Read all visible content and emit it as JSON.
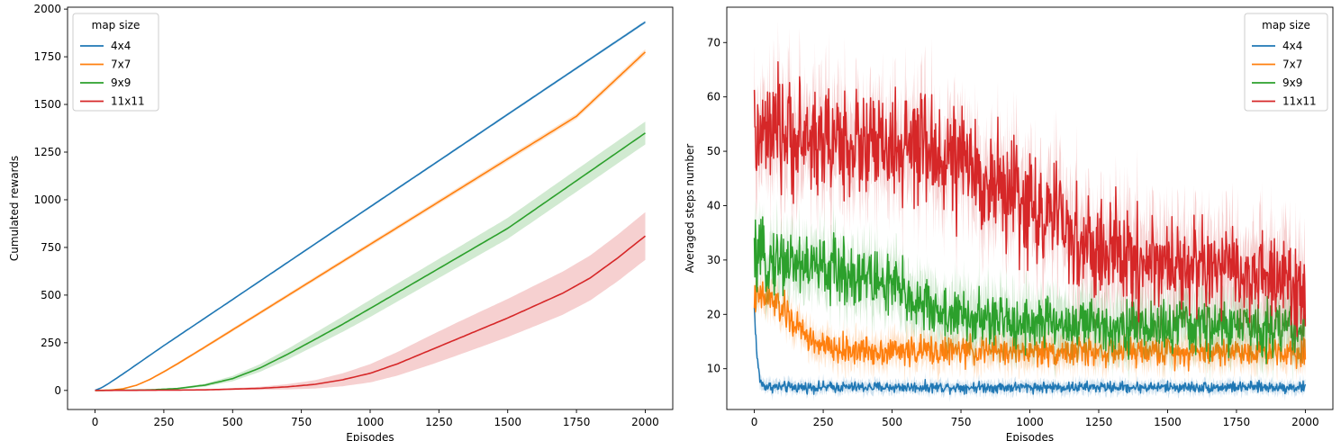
{
  "chart_data": [
    {
      "type": "line",
      "title": "",
      "xlabel": "Episodes",
      "ylabel": "Cumulated rewards",
      "xlim": [
        -100,
        2100
      ],
      "ylim": [
        -100,
        2010
      ],
      "xticks": [
        0,
        250,
        500,
        750,
        1000,
        1250,
        1500,
        1750,
        2000
      ],
      "yticks": [
        0,
        250,
        500,
        750,
        1000,
        1250,
        1500,
        1750,
        2000
      ],
      "grid": false,
      "legend": {
        "title": "map size",
        "placement": "upper-left"
      },
      "series": [
        {
          "name": "4x4",
          "color": "#1f77b4",
          "x": [
            0,
            25,
            50,
            100,
            250,
            500,
            750,
            1000,
            1250,
            1500,
            1750,
            2000
          ],
          "y": [
            0,
            15,
            37,
            85,
            235,
            477,
            720,
            963,
            1205,
            1448,
            1690,
            1932
          ],
          "band": [
            0,
            0,
            1,
            2,
            3,
            4,
            5,
            6,
            6,
            7,
            7,
            8
          ]
        },
        {
          "name": "7x7",
          "color": "#ff7f0e",
          "x": [
            0,
            50,
            100,
            150,
            200,
            250,
            300,
            400,
            500,
            750,
            1000,
            1250,
            1500,
            1750,
            2000
          ],
          "y": [
            0,
            1,
            8,
            27,
            58,
            98,
            140,
            228,
            318,
            542,
            766,
            990,
            1214,
            1438,
            1775
          ],
          "band": [
            0,
            0,
            1,
            3,
            5,
            6,
            7,
            8,
            9,
            10,
            11,
            12,
            13,
            14,
            15
          ]
        },
        {
          "name": "9x9",
          "color": "#2ca02c",
          "x": [
            0,
            100,
            200,
            300,
            400,
            500,
            600,
            700,
            800,
            900,
            1000,
            1250,
            1500,
            1750,
            2000
          ],
          "y": [
            0,
            1,
            3,
            10,
            28,
            62,
            118,
            190,
            268,
            347,
            430,
            640,
            850,
            1100,
            1350
          ],
          "band": [
            0,
            1,
            2,
            4,
            8,
            14,
            20,
            28,
            34,
            40,
            45,
            50,
            55,
            58,
            60
          ]
        },
        {
          "name": "11x11",
          "color": "#d62728",
          "x": [
            0,
            200,
            400,
            600,
            700,
            800,
            900,
            1000,
            1100,
            1200,
            1300,
            1400,
            1500,
            1600,
            1700,
            1800,
            1900,
            2000
          ],
          "y": [
            0,
            1,
            3,
            11,
            19,
            32,
            56,
            90,
            140,
            200,
            260,
            320,
            380,
            445,
            510,
            590,
            695,
            810
          ],
          "band": [
            0,
            1,
            3,
            8,
            14,
            22,
            34,
            48,
            62,
            75,
            85,
            93,
            100,
            107,
            113,
            118,
            122,
            125
          ]
        }
      ]
    },
    {
      "type": "line",
      "title": "",
      "xlabel": "Episodes",
      "ylabel": "Averaged steps number",
      "xlim": [
        -100,
        2100
      ],
      "ylim": [
        2.5,
        76.5
      ],
      "xticks": [
        0,
        250,
        500,
        750,
        1000,
        1250,
        1500,
        1750,
        2000
      ],
      "yticks": [
        10,
        20,
        30,
        40,
        50,
        60,
        70
      ],
      "grid": false,
      "legend": {
        "title": "map size",
        "placement": "upper-right"
      },
      "series": [
        {
          "name": "4x4",
          "color": "#1f77b4",
          "x": [
            0,
            10,
            20,
            30,
            50,
            100,
            500,
            1000,
            1500,
            2000
          ],
          "y": [
            21,
            12,
            8,
            7,
            6.7,
            6.6,
            6.6,
            6.6,
            6.6,
            6.6
          ],
          "noise": 0.6,
          "band": 1.0
        },
        {
          "name": "7x7",
          "color": "#ff7f0e",
          "x": [
            0,
            50,
            100,
            150,
            200,
            250,
            300,
            500,
            1000,
            1500,
            2000
          ],
          "y": [
            23,
            23,
            21,
            18,
            15.5,
            14,
            13.4,
            13.3,
            13.2,
            13.2,
            13.2
          ],
          "noise": 1.6,
          "band": 2.5
        },
        {
          "name": "9x9",
          "color": "#2ca02c",
          "x": [
            0,
            100,
            200,
            300,
            400,
            500,
            600,
            700,
            800,
            1000,
            1250,
            1500,
            1750,
            2000
          ],
          "y": [
            30,
            30,
            29,
            28,
            27,
            25,
            22,
            20,
            19,
            18.5,
            18,
            17.8,
            17.8,
            17.8
          ],
          "noise": 3.0,
          "band": 4.5
        },
        {
          "name": "11x11",
          "color": "#d62728",
          "x": [
            0,
            100,
            200,
            300,
            400,
            500,
            600,
            700,
            800,
            900,
            1000,
            1100,
            1200,
            1300,
            1400,
            1500,
            1600,
            1700,
            1800,
            1900,
            2000
          ],
          "y": [
            52,
            53,
            52,
            52,
            51,
            50,
            50,
            49,
            46,
            43,
            40,
            37,
            32,
            31,
            30,
            29.5,
            29,
            28,
            27,
            26,
            25
          ],
          "noise": 5.0,
          "band": 7.0
        }
      ]
    }
  ]
}
